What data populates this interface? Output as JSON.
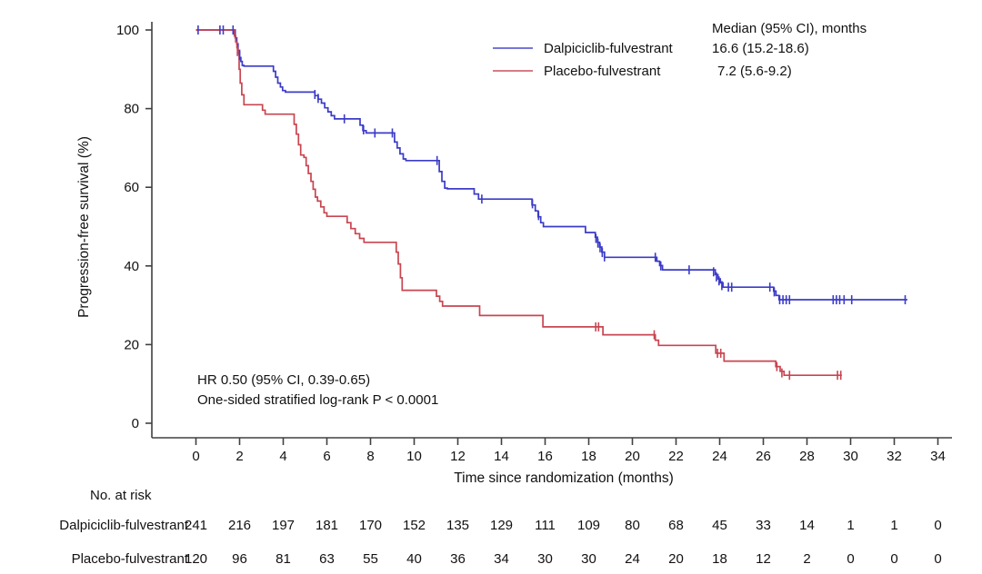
{
  "chart": {
    "y_axis": {
      "label": "Progression-free survival (%)",
      "ticks": [
        0,
        20,
        40,
        60,
        80,
        100
      ],
      "range": [
        0,
        100
      ]
    },
    "x_axis": {
      "label": "Time since randomization (months)",
      "ticks": [
        0,
        2,
        4,
        6,
        8,
        10,
        12,
        14,
        16,
        18,
        20,
        22,
        24,
        26,
        28,
        30,
        32,
        34
      ],
      "range": [
        0,
        34
      ]
    },
    "legend": {
      "header": "Median (95% CI), months",
      "entries": [
        {
          "label": "Dalpiciclib-fulvestrant",
          "median": "16.6 (15.2-18.6)",
          "color": "#3b3bc8"
        },
        {
          "label": "Placebo-fulvestrant",
          "median": "7.2 (5.6-9.2)",
          "color": "#c84550"
        }
      ]
    },
    "annotations": {
      "line1": "HR 0.50 (95% CI, 0.39-0.65)",
      "line2": "One-sided stratified log-rank P < 0.0001"
    }
  },
  "chart_data": {
    "type": "line",
    "subtype": "kaplan-meier-step",
    "title": "",
    "xlabel": "Time since randomization (months)",
    "ylabel": "Progression-free survival (%)",
    "xlim": [
      0,
      34
    ],
    "ylim": [
      0,
      100
    ],
    "grid": false,
    "legend_position": "top-right",
    "series": [
      {
        "name": "Dalpiciclib-fulvestrant",
        "color": "#3b3bc8",
        "median_months": "16.6 (15.2-18.6)",
        "points": [
          [
            0,
            100
          ],
          [
            1.75,
            100
          ],
          [
            1.8,
            98
          ],
          [
            1.87,
            96.5
          ],
          [
            1.93,
            94.8
          ],
          [
            2.0,
            93
          ],
          [
            2.06,
            92
          ],
          [
            2.12,
            91
          ],
          [
            2.2,
            90.8
          ],
          [
            3.45,
            90.8
          ],
          [
            3.55,
            89.5
          ],
          [
            3.65,
            88
          ],
          [
            3.75,
            86.5
          ],
          [
            3.87,
            85.5
          ],
          [
            3.97,
            84.6
          ],
          [
            4.1,
            84.2
          ],
          [
            5.35,
            84.2
          ],
          [
            5.45,
            83.3
          ],
          [
            5.6,
            82.4
          ],
          [
            5.75,
            81.4
          ],
          [
            5.9,
            80.2
          ],
          [
            6.05,
            79.2
          ],
          [
            6.2,
            78.2
          ],
          [
            6.35,
            77.4
          ],
          [
            7.4,
            77.4
          ],
          [
            7.52,
            75.8
          ],
          [
            7.65,
            74.4
          ],
          [
            7.8,
            73.8
          ],
          [
            9.0,
            73.8
          ],
          [
            9.1,
            71.5
          ],
          [
            9.22,
            70
          ],
          [
            9.35,
            68.5
          ],
          [
            9.5,
            67.2
          ],
          [
            9.62,
            66.8
          ],
          [
            11.05,
            66.8
          ],
          [
            11.15,
            64
          ],
          [
            11.27,
            61.5
          ],
          [
            11.4,
            59.8
          ],
          [
            11.52,
            59.6
          ],
          [
            12.6,
            59.6
          ],
          [
            12.75,
            58.3
          ],
          [
            12.95,
            57.0
          ],
          [
            15.25,
            57.0
          ],
          [
            15.4,
            55.5
          ],
          [
            15.55,
            54
          ],
          [
            15.68,
            52.5
          ],
          [
            15.8,
            51
          ],
          [
            15.92,
            50
          ],
          [
            17.78,
            50
          ],
          [
            17.85,
            48.5
          ],
          [
            18.2,
            48.5
          ],
          [
            18.3,
            47.3
          ],
          [
            18.4,
            46
          ],
          [
            18.5,
            44.8
          ],
          [
            18.6,
            43.5
          ],
          [
            18.72,
            42.2
          ],
          [
            21.0,
            42.2
          ],
          [
            21.12,
            41.2
          ],
          [
            21.25,
            40.1
          ],
          [
            21.38,
            39.0
          ],
          [
            23.7,
            39.0
          ],
          [
            23.8,
            37.8
          ],
          [
            23.92,
            36.7
          ],
          [
            24.03,
            35.7
          ],
          [
            24.15,
            34.6
          ],
          [
            26.35,
            34.6
          ],
          [
            26.47,
            33.6
          ],
          [
            26.58,
            32.5
          ],
          [
            26.72,
            31.4
          ],
          [
            32.6,
            31.4
          ]
        ],
        "censors": [
          [
            0.1,
            100
          ],
          [
            1.1,
            100
          ],
          [
            1.25,
            100
          ],
          [
            1.7,
            100
          ],
          [
            2.0,
            93.5
          ],
          [
            5.45,
            83.6
          ],
          [
            5.6,
            82.6
          ],
          [
            6.8,
            77.4
          ],
          [
            7.68,
            74.6
          ],
          [
            8.2,
            73.8
          ],
          [
            9.0,
            73.8
          ],
          [
            11.05,
            66.8
          ],
          [
            13.1,
            57.0
          ],
          [
            15.42,
            55.8
          ],
          [
            15.7,
            52.8
          ],
          [
            18.33,
            47.0
          ],
          [
            18.42,
            45.8
          ],
          [
            18.52,
            44.6
          ],
          [
            18.62,
            43.4
          ],
          [
            18.72,
            42.3
          ],
          [
            21.05,
            42.2
          ],
          [
            21.3,
            40.0
          ],
          [
            22.6,
            39.0
          ],
          [
            23.72,
            38.5
          ],
          [
            23.85,
            37.2
          ],
          [
            23.97,
            36.2
          ],
          [
            24.1,
            35.0
          ],
          [
            24.4,
            34.6
          ],
          [
            24.55,
            34.6
          ],
          [
            26.3,
            34.6
          ],
          [
            26.5,
            33.4
          ],
          [
            26.75,
            31.4
          ],
          [
            26.9,
            31.4
          ],
          [
            27.05,
            31.4
          ],
          [
            27.2,
            31.4
          ],
          [
            29.2,
            31.4
          ],
          [
            29.35,
            31.4
          ],
          [
            29.5,
            31.4
          ],
          [
            29.7,
            31.4
          ],
          [
            30.05,
            31.4
          ],
          [
            32.5,
            31.4
          ]
        ]
      },
      {
        "name": "Placebo-fulvestrant",
        "color": "#c84550",
        "median_months": "7.2 (5.6-9.2)",
        "points": [
          [
            0,
            100
          ],
          [
            1.7,
            100
          ],
          [
            1.76,
            98.5
          ],
          [
            1.82,
            97
          ],
          [
            1.88,
            95.5
          ],
          [
            1.93,
            94
          ],
          [
            1.98,
            90
          ],
          [
            2.03,
            86.5
          ],
          [
            2.1,
            83.5
          ],
          [
            2.2,
            81
          ],
          [
            2.95,
            81
          ],
          [
            3.05,
            79.6
          ],
          [
            3.17,
            78.6
          ],
          [
            4.4,
            78.6
          ],
          [
            4.5,
            76
          ],
          [
            4.6,
            73.5
          ],
          [
            4.7,
            70.8
          ],
          [
            4.8,
            68.2
          ],
          [
            4.95,
            67.6
          ],
          [
            5.05,
            65.5
          ],
          [
            5.15,
            63.5
          ],
          [
            5.27,
            61.5
          ],
          [
            5.37,
            59.5
          ],
          [
            5.47,
            57.5
          ],
          [
            5.57,
            56.5
          ],
          [
            5.72,
            55
          ],
          [
            5.87,
            53.5
          ],
          [
            6.0,
            52.6
          ],
          [
            6.8,
            52.6
          ],
          [
            6.93,
            51
          ],
          [
            7.1,
            49.5
          ],
          [
            7.3,
            48.2
          ],
          [
            7.5,
            47
          ],
          [
            7.7,
            46
          ],
          [
            9.1,
            46
          ],
          [
            9.18,
            43.5
          ],
          [
            9.27,
            40.5
          ],
          [
            9.37,
            37
          ],
          [
            9.45,
            33.8
          ],
          [
            10.9,
            33.8
          ],
          [
            11.02,
            32.3
          ],
          [
            11.17,
            31
          ],
          [
            11.3,
            29.8
          ],
          [
            12.8,
            29.8
          ],
          [
            13.0,
            27.4
          ],
          [
            15.7,
            27.4
          ],
          [
            15.9,
            24.5
          ],
          [
            18.5,
            24.5
          ],
          [
            18.65,
            22.5
          ],
          [
            20.9,
            22.5
          ],
          [
            21.05,
            21.1
          ],
          [
            21.2,
            19.8
          ],
          [
            23.7,
            19.8
          ],
          [
            23.82,
            17.8
          ],
          [
            24.2,
            15.8
          ],
          [
            26.4,
            15.8
          ],
          [
            26.57,
            14.4
          ],
          [
            26.77,
            13.2
          ],
          [
            26.95,
            12.2
          ],
          [
            29.6,
            12.2
          ]
        ],
        "censors": [
          [
            1.9,
            94.5
          ],
          [
            18.32,
            24.5
          ],
          [
            18.45,
            24.5
          ],
          [
            21.0,
            22.5
          ],
          [
            23.9,
            17.8
          ],
          [
            24.05,
            17.8
          ],
          [
            26.62,
            14.4
          ],
          [
            26.85,
            12.8
          ],
          [
            27.2,
            12.2
          ],
          [
            29.4,
            12.2
          ],
          [
            29.55,
            12.2
          ]
        ]
      }
    ]
  },
  "risk_table": {
    "title": "No. at risk",
    "time_points": [
      0,
      2,
      4,
      6,
      8,
      10,
      12,
      14,
      16,
      18,
      20,
      22,
      24,
      26,
      28,
      30,
      32,
      34
    ],
    "rows": [
      {
        "label": "Dalpiciclib-fulvestrant",
        "values": [
          241,
          216,
          197,
          181,
          170,
          152,
          135,
          129,
          111,
          109,
          80,
          68,
          45,
          33,
          14,
          1,
          1,
          0
        ]
      },
      {
        "label": "Placebo-fulvestrant",
        "values": [
          120,
          96,
          81,
          63,
          55,
          40,
          36,
          34,
          30,
          30,
          24,
          20,
          18,
          12,
          2,
          0,
          0,
          0
        ]
      }
    ]
  }
}
